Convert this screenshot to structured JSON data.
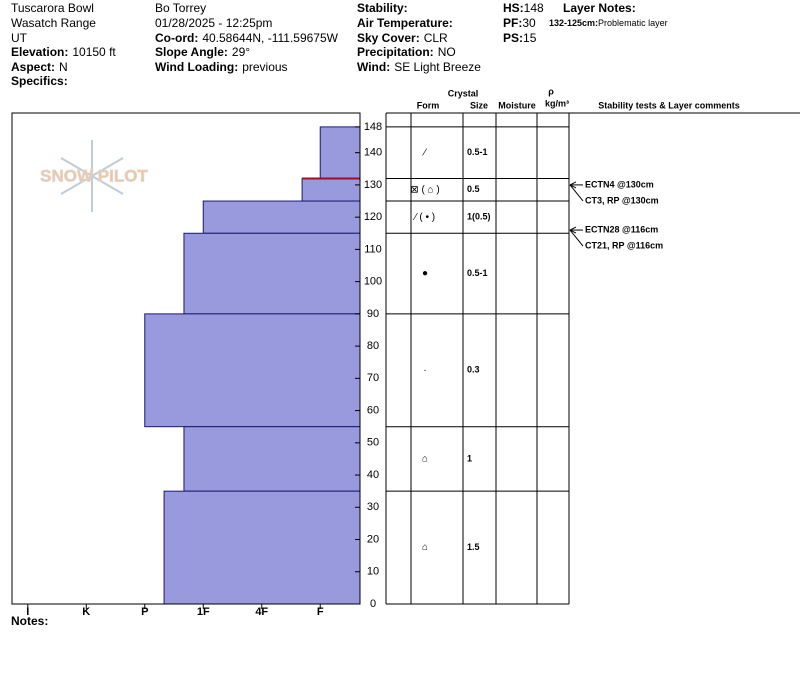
{
  "header": {
    "rows": [
      [
        "Tuscarora Bowl",
        "Bo Torrey"
      ],
      [
        "Wasatch Range",
        "01/28/2025 - 12:25pm"
      ],
      [
        "UT",
        {
          "label": "Co-ord:",
          "value": "40.58644N, -111.59675W"
        }
      ],
      [
        {
          "label": "Elevation:",
          "value": "10150 ft"
        },
        {
          "label": "Slope Angle:",
          "value": "29°"
        }
      ],
      [
        {
          "label": "Aspect:",
          "value": "N"
        },
        {
          "label": "Wind Loading:",
          "value": "previous"
        }
      ],
      [
        {
          "label": "Specifics:",
          "value": ""
        }
      ]
    ],
    "conditions": [
      {
        "label": "Stability:",
        "value": ""
      },
      {
        "label": "Air Temperature:",
        "value": ""
      },
      {
        "label": "Sky Cover:",
        "value": "CLR"
      },
      {
        "label": "Precipitation:",
        "value": "NO"
      },
      {
        "label": "Wind:",
        "value": "SE Light Breeze"
      }
    ],
    "snowpack": [
      {
        "label": "HS:",
        "value": "148"
      },
      {
        "label": "PF:",
        "value": "30"
      },
      {
        "label": "PS:",
        "value": "15"
      }
    ],
    "layer_notes_title": "Layer Notes:",
    "layer_note": {
      "label": "132-125cm:",
      "value": "Problematic layer"
    }
  },
  "logo": "SNOW PILOT",
  "columns": {
    "crystal": "Crystal",
    "form": "Form",
    "size": "Size",
    "moisture": "Moisture",
    "rho": "ρ",
    "density": "kg/m³",
    "comments": "Stability tests & Layer comments"
  },
  "notes": "Notes:",
  "chart_data": {
    "type": "hardness-profile",
    "color": "#9999dd",
    "ylim": [
      0,
      152
    ],
    "yticks": [
      0,
      10,
      20,
      30,
      40,
      50,
      60,
      70,
      80,
      90,
      100,
      110,
      120,
      130,
      140,
      148
    ],
    "xlim": [
      6.27,
      0.32
    ],
    "xticks": [
      {
        "value": 6,
        "label": "I"
      },
      {
        "value": 5,
        "label": "K"
      },
      {
        "value": 4,
        "label": "P"
      },
      {
        "value": 3,
        "label": "1F"
      },
      {
        "value": 2,
        "label": "4F"
      },
      {
        "value": 1,
        "label": "F"
      }
    ],
    "layers": {
      "top": [
        148,
        132,
        125,
        115,
        90,
        55,
        35
      ],
      "bottom": [
        132,
        125,
        115,
        90,
        55,
        35,
        0
      ],
      "hardness": [
        1,
        1.31,
        3,
        3.33,
        4,
        3.33,
        3.67
      ],
      "form": [
        "⁄",
        "⊠ ( ⌂ )",
        "⁄ ( • )",
        "●",
        "·",
        "⌂",
        "⌂"
      ],
      "size": [
        "0.5-1",
        "0.5",
        "1(0.5)",
        "0.5-1",
        "0.3",
        "1",
        "1.5"
      ]
    },
    "problem_layer": 132,
    "tests": [
      {
        "depth": 130,
        "labels": [
          "ECTN4 @130cm",
          "CT3, RP @130cm"
        ]
      },
      {
        "depth": 116,
        "labels": [
          "ECTN28 @116cm",
          "CT21, RP @116cm"
        ]
      }
    ]
  }
}
